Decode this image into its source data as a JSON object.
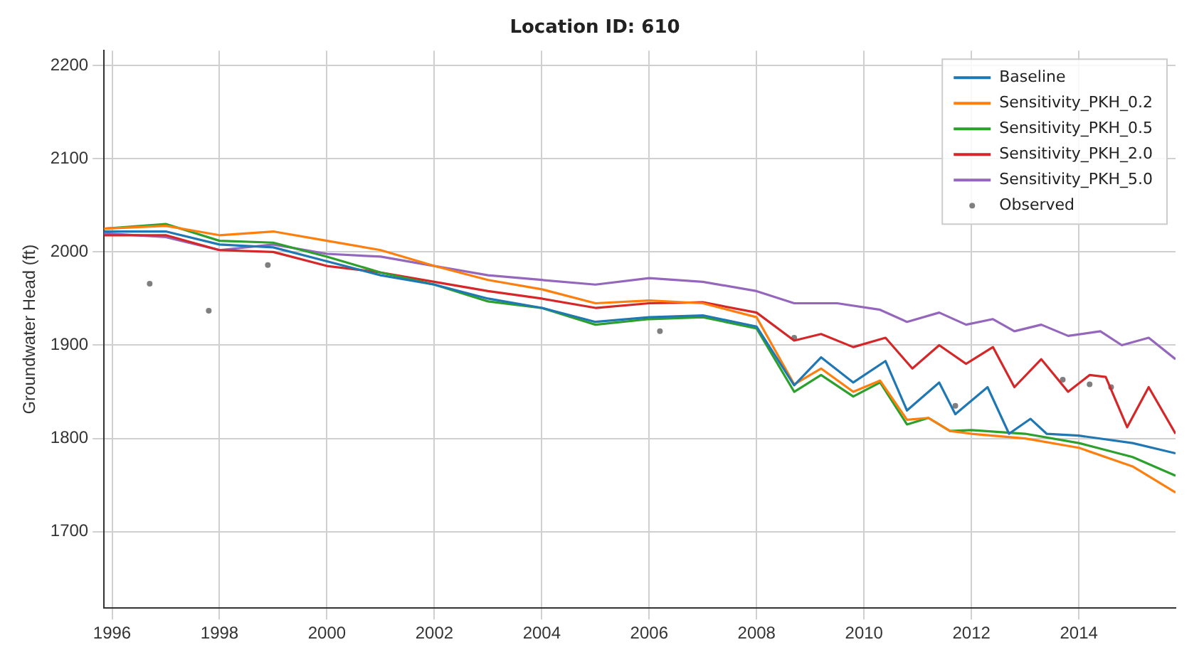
{
  "chart_data": {
    "type": "line",
    "title": "Location ID: 610",
    "ylabel": "Groundwater Head (ft)",
    "xlim": [
      1995.85,
      2015.8
    ],
    "xticks": [
      1996,
      1998,
      2000,
      2002,
      2004,
      2006,
      2008,
      2010,
      2012,
      2014
    ],
    "ylim": [
      1618,
      2216
    ],
    "yticks": [
      1700,
      1800,
      1900,
      2000,
      2100,
      2200
    ],
    "grid": true,
    "legend": "top right",
    "marker": "none",
    "series": [
      {
        "name": "Baseline",
        "color": "#1f77b4",
        "x": [
          1995.85,
          1997,
          1998,
          1999,
          2000,
          2001,
          2002,
          2003,
          2004,
          2005,
          2006,
          2007,
          2008,
          2008.7,
          2009.2,
          2009.8,
          2010.4,
          2010.8,
          2011.4,
          2011.7,
          2012.3,
          2012.7,
          2013.1,
          2013.4,
          2014,
          2015,
          2015.8
        ],
        "values": [
          2022,
          2022,
          2008,
          2005,
          1990,
          1975,
          1965,
          1950,
          1940,
          1925,
          1930,
          1932,
          1920,
          1857,
          1887,
          1860,
          1883,
          1830,
          1860,
          1826,
          1855,
          1805,
          1821,
          1805,
          1803,
          1795,
          1784
        ]
      },
      {
        "name": "Sensitivity_PKH_0.2",
        "color": "#ff7f0e",
        "x": [
          1995.85,
          1997,
          1998,
          1999,
          2000,
          2001,
          2002,
          2003,
          2004,
          2005,
          2006,
          2007,
          2008,
          2008.7,
          2009.2,
          2009.8,
          2010.3,
          2010.8,
          2011.2,
          2011.6,
          2012,
          2013,
          2014,
          2015,
          2015.8
        ],
        "values": [
          2025,
          2028,
          2018,
          2022,
          2012,
          2002,
          1985,
          1970,
          1960,
          1945,
          1948,
          1945,
          1930,
          1858,
          1875,
          1850,
          1862,
          1820,
          1822,
          1808,
          1805,
          1800,
          1790,
          1770,
          1742
        ]
      },
      {
        "name": "Sensitivity_PKH_0.5",
        "color": "#2ca02c",
        "x": [
          1995.85,
          1997,
          1998,
          1999,
          2000,
          2001,
          2002,
          2003,
          2004,
          2005,
          2006,
          2007,
          2008,
          2008.7,
          2009.2,
          2009.8,
          2010.3,
          2010.8,
          2011.2,
          2011.6,
          2012,
          2013,
          2014,
          2015,
          2015.8
        ],
        "values": [
          2025,
          2030,
          2012,
          2010,
          1995,
          1978,
          1965,
          1947,
          1940,
          1922,
          1928,
          1930,
          1918,
          1850,
          1868,
          1845,
          1860,
          1815,
          1822,
          1808,
          1809,
          1805,
          1795,
          1780,
          1760
        ]
      },
      {
        "name": "Sensitivity_PKH_2.0",
        "color": "#d62728",
        "x": [
          1995.85,
          1997,
          1998,
          1999,
          2000,
          2001,
          2002,
          2003,
          2004,
          2005,
          2006,
          2007,
          2008,
          2008.7,
          2009.2,
          2009.8,
          2010.4,
          2010.9,
          2011.4,
          2011.9,
          2012.4,
          2012.8,
          2013.3,
          2013.8,
          2014.2,
          2014.5,
          2014.9,
          2015.3,
          2015.8
        ],
        "values": [
          2018,
          2018,
          2002,
          2000,
          1985,
          1978,
          1968,
          1958,
          1950,
          1940,
          1945,
          1946,
          1935,
          1905,
          1912,
          1898,
          1908,
          1875,
          1900,
          1880,
          1898,
          1855,
          1885,
          1850,
          1868,
          1866,
          1812,
          1855,
          1805
        ]
      },
      {
        "name": "Sensitivity_PKH_5.0",
        "color": "#9467bd",
        "x": [
          1995.85,
          1997,
          1998,
          1999,
          2000,
          2001,
          2002,
          2003,
          2004,
          2005,
          2006,
          2007,
          2008,
          2008.7,
          2009.5,
          2010.3,
          2010.8,
          2011.4,
          2011.9,
          2012.4,
          2012.8,
          2013.3,
          2013.8,
          2014.4,
          2014.8,
          2015.3,
          2015.8
        ],
        "values": [
          2020,
          2016,
          2002,
          2008,
          1998,
          1995,
          1985,
          1975,
          1970,
          1965,
          1972,
          1968,
          1958,
          1945,
          1945,
          1938,
          1925,
          1935,
          1922,
          1928,
          1915,
          1922,
          1910,
          1915,
          1900,
          1908,
          1885
        ]
      },
      {
        "name": "Observed",
        "type": "scatter",
        "marker": "circle",
        "color": "#7f7f7f",
        "x": [
          1996.7,
          1997.8,
          1998.9,
          2006.2,
          2008.7,
          2011.7,
          2013.7,
          2014.2,
          2014.6
        ],
        "values": [
          1966,
          1937,
          1986,
          1915,
          1908,
          1835,
          1863,
          1858,
          1855
        ]
      }
    ]
  }
}
